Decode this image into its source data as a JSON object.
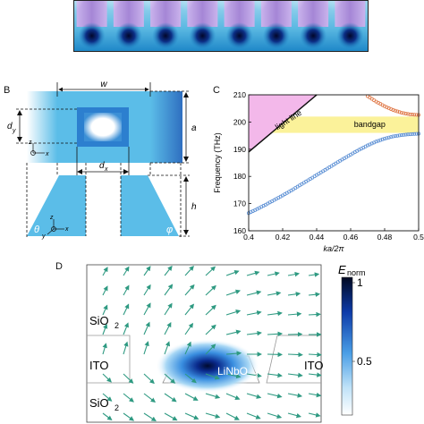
{
  "panels": {
    "b": {
      "letter": "B",
      "w": "w",
      "a": "a",
      "dy": "d",
      "dy_sub": "y",
      "dx": "d",
      "dx_sub": "x",
      "h": "h",
      "theta": "θ",
      "phi": "φ",
      "axis_z": "z",
      "axis_y": "y",
      "axis_x": "x"
    },
    "c": {
      "letter": "C"
    },
    "d": {
      "letter": "D",
      "sio2_top": "SiO",
      "sio2_top_sub": "2",
      "ito_left": "ITO",
      "sio2_bot": "SiO",
      "sio2_bot_sub": "2",
      "linbo3": "LiNbO",
      "linbo3_sub": "3",
      "ito_right": "ITO",
      "colorbar": {
        "title": "E",
        "title_sub": "norm",
        "tick_max": "1",
        "tick_mid": "0.5"
      }
    }
  },
  "chart_data": {
    "type": "scatter",
    "xlabel": "ka/2π",
    "ylabel": "Frequency (THz)",
    "xlim": [
      0.4,
      0.5
    ],
    "ylim": [
      160,
      210
    ],
    "xticks": [
      "0.4",
      "0.42",
      "0.44",
      "0.46",
      "0.48",
      "0.5"
    ],
    "yticks": [
      "160",
      "170",
      "180",
      "190",
      "200",
      "210"
    ],
    "annotations": [
      "light line",
      "bandgap"
    ],
    "light_line": {
      "x": [
        0.4,
        0.44
      ],
      "y": [
        189,
        210
      ]
    },
    "bandgap": [
      196,
      202
    ],
    "series": [
      {
        "color": "#5b8fd4",
        "x": [
          0.4,
          0.405,
          0.41,
          0.415,
          0.42,
          0.425,
          0.43,
          0.435,
          0.44,
          0.445,
          0.45,
          0.455,
          0.46,
          0.465,
          0.47,
          0.475,
          0.48,
          0.485,
          0.49,
          0.495,
          0.5
        ],
        "y": [
          166.5,
          168.0,
          169.6,
          171.3,
          173.0,
          174.8,
          176.7,
          178.6,
          180.5,
          182.4,
          184.3,
          186.2,
          188.0,
          189.8,
          191.4,
          192.8,
          193.9,
          194.7,
          195.2,
          195.5,
          195.7
        ]
      },
      {
        "color": "#e07a4a",
        "x": [
          0.47,
          0.475,
          0.48,
          0.485,
          0.49,
          0.495,
          0.5
        ],
        "y": [
          209.5,
          207.5,
          205.8,
          204.4,
          203.4,
          202.8,
          202.6
        ]
      }
    ]
  }
}
